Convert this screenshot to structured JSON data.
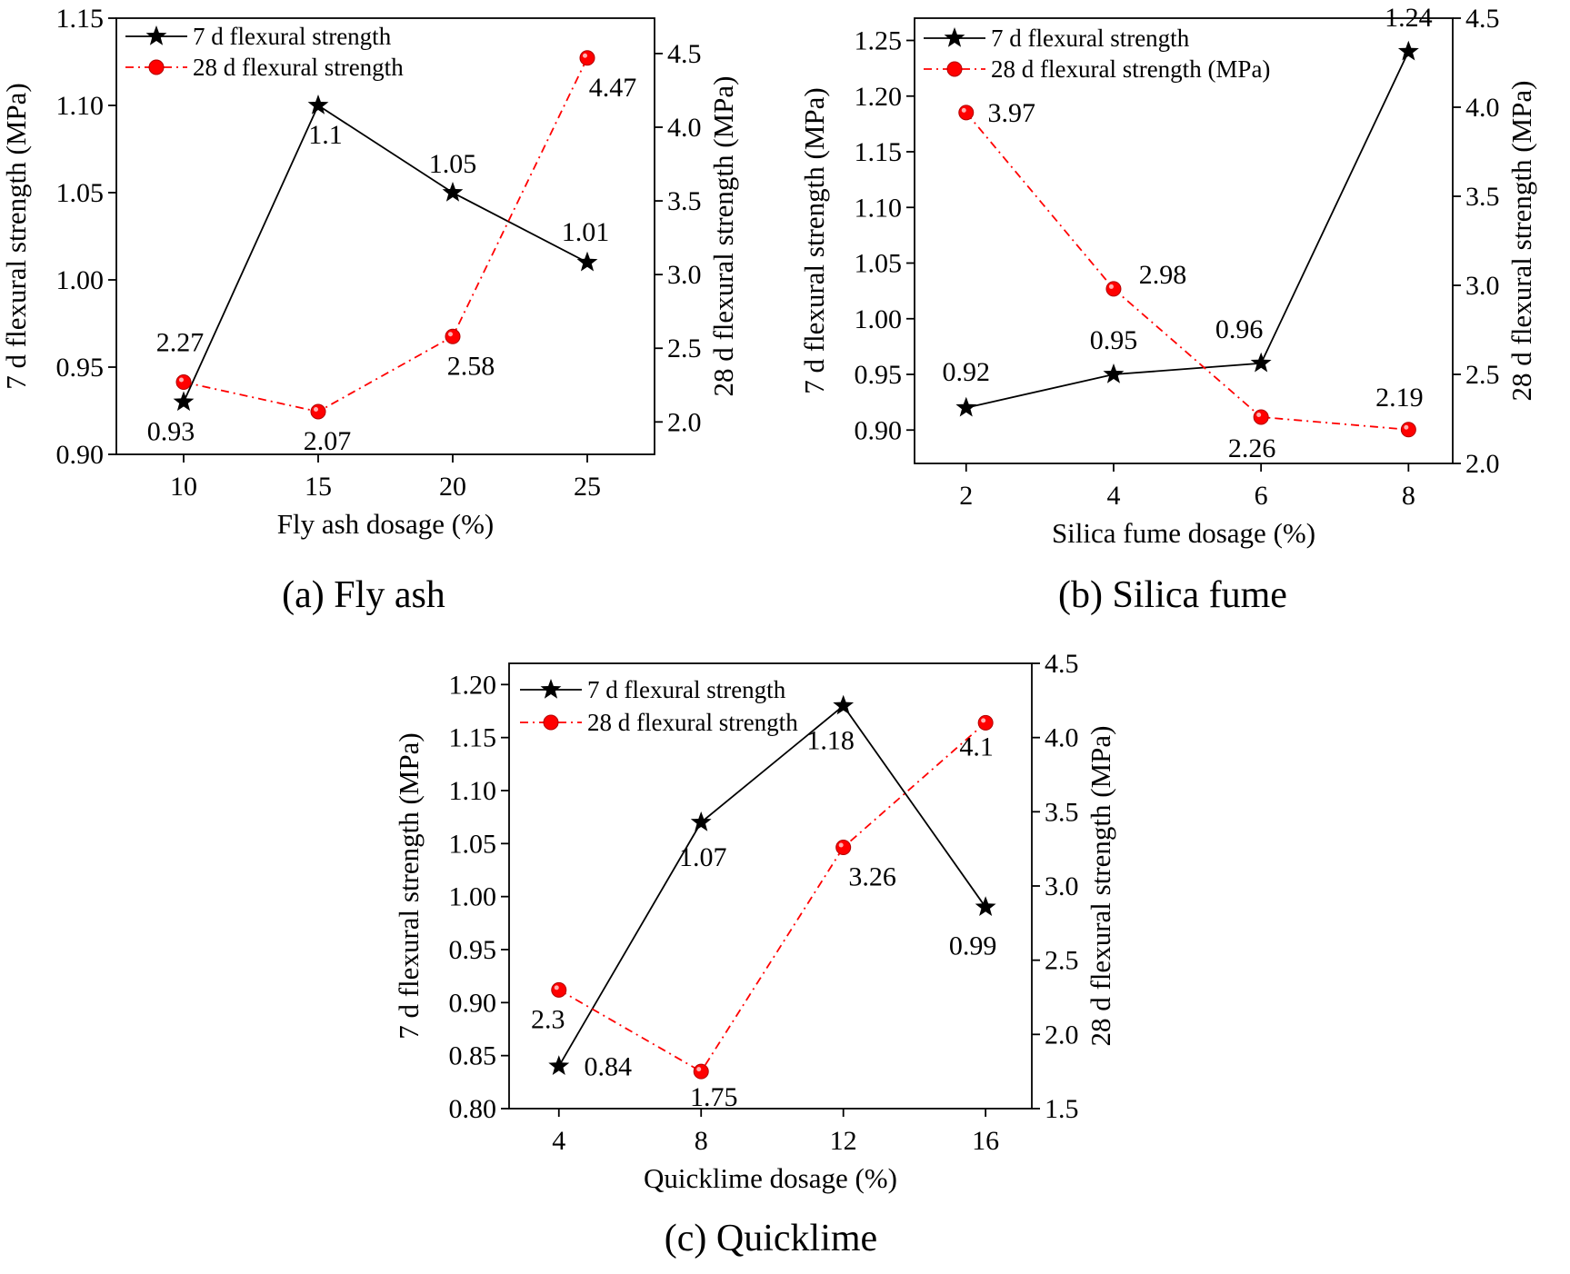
{
  "chart_data": [
    {
      "type": "line",
      "caption": "(a) Fly ash",
      "xlabel": "Fly ash dosage (%)",
      "ylabel_left": "7 d flexural strength (MPa)",
      "ylabel_right": "28 d flexural strength (MPa)",
      "x": [
        10,
        15,
        20,
        25
      ],
      "x_ticks": [
        "10",
        "15",
        "20",
        "25"
      ],
      "xlim": [
        7.5,
        27.5
      ],
      "ylim_left": [
        0.9,
        1.15
      ],
      "y_ticks_left": [
        "0.90",
        "0.95",
        "1.00",
        "1.05",
        "1.10",
        "1.15"
      ],
      "ylim_right": [
        1.78,
        4.74
      ],
      "y_ticks_right": [
        "2.0",
        "2.5",
        "3.0",
        "3.5",
        "4.0",
        "4.5"
      ],
      "legend": "top-left",
      "series": [
        {
          "name": "7 d flexural strength",
          "axis": "left",
          "color": "#000000",
          "marker": "star",
          "linestyle": "solid",
          "values": [
            0.93,
            1.1,
            1.05,
            1.01
          ],
          "labels": [
            "0.93",
            "1.1",
            "1.05",
            "1.01"
          ]
        },
        {
          "name": "28 d flexural strength",
          "axis": "right",
          "color": "#ff0000",
          "marker": "circle",
          "linestyle": "dashdot",
          "values": [
            2.27,
            2.07,
            2.58,
            4.47
          ],
          "labels": [
            "2.27",
            "2.07",
            "2.58",
            "4.47"
          ]
        }
      ]
    },
    {
      "type": "line",
      "caption": "(b) Silica fume",
      "xlabel": "Silica fume dosage (%)",
      "ylabel_left": "7 d flexural strength (MPa)",
      "ylabel_right": "28 d flexural strength (MPa)",
      "x": [
        2,
        4,
        6,
        8
      ],
      "x_ticks": [
        "2",
        "4",
        "6",
        "8"
      ],
      "xlim": [
        1.3,
        8.6
      ],
      "ylim_left": [
        0.87,
        1.27
      ],
      "y_ticks_left": [
        "0.90",
        "0.95",
        "1.00",
        "1.05",
        "1.10",
        "1.15",
        "1.20",
        "1.25"
      ],
      "ylim_right": [
        2.0,
        4.5
      ],
      "y_ticks_right": [
        "2.0",
        "2.5",
        "3.0",
        "3.5",
        "4.0",
        "4.5"
      ],
      "legend": "top-left",
      "series": [
        {
          "name": "7 d flexural strength",
          "axis": "left",
          "color": "#000000",
          "marker": "star",
          "linestyle": "solid",
          "values": [
            0.92,
            0.95,
            0.96,
            1.24
          ],
          "labels": [
            "0.92",
            "0.95",
            "0.96",
            "1.24"
          ]
        },
        {
          "name": "28 d flexural strength (MPa)",
          "axis": "right",
          "color": "#ff0000",
          "marker": "circle",
          "linestyle": "dashdot",
          "values": [
            3.97,
            2.98,
            2.26,
            2.19
          ],
          "labels": [
            "3.97",
            "2.98",
            "2.26",
            "2.19"
          ]
        }
      ]
    },
    {
      "type": "line",
      "caption": "(c) Quicklime",
      "xlabel": "Quicklime dosage (%)",
      "ylabel_left": "7 d flexural strength (MPa)",
      "ylabel_right": "28 d flexural strength (MPa)",
      "x": [
        4,
        8,
        12,
        16
      ],
      "x_ticks": [
        "4",
        "8",
        "12",
        "16"
      ],
      "xlim": [
        2.6,
        17.3
      ],
      "ylim_left": [
        0.8,
        1.22
      ],
      "y_ticks_left": [
        "0.80",
        "0.85",
        "0.90",
        "0.95",
        "1.00",
        "1.05",
        "1.10",
        "1.15",
        "1.20"
      ],
      "ylim_right": [
        1.5,
        4.5
      ],
      "y_ticks_right": [
        "1.5",
        "2.0",
        "2.5",
        "3.0",
        "3.5",
        "4.0",
        "4.5"
      ],
      "legend": "top-left",
      "series": [
        {
          "name": "7 d flexural strength",
          "axis": "left",
          "color": "#000000",
          "marker": "star",
          "linestyle": "solid",
          "values": [
            0.84,
            1.07,
            1.18,
            0.99
          ],
          "labels": [
            "0.84",
            "1.07",
            "1.18",
            "0.99"
          ]
        },
        {
          "name": "28 d flexural strength",
          "axis": "right",
          "color": "#ff0000",
          "marker": "circle",
          "linestyle": "dashdot",
          "values": [
            2.3,
            1.75,
            3.26,
            4.1
          ],
          "labels": [
            "2.3",
            "1.75",
            "3.26",
            "4.1"
          ]
        }
      ]
    }
  ]
}
